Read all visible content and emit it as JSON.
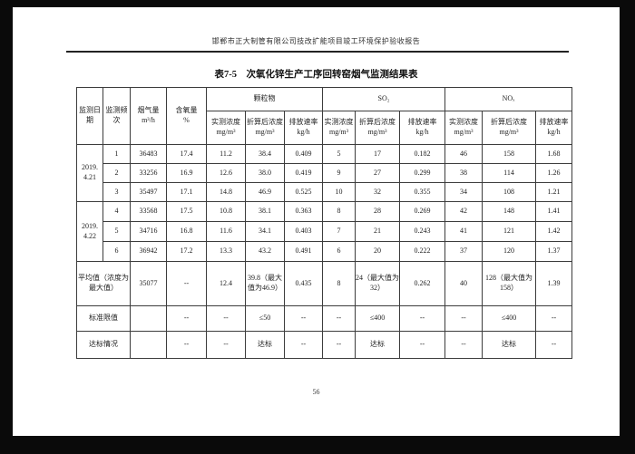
{
  "page": {
    "header": "邯郸市正大制管有限公司技改扩能项目竣工环境保护验收报告",
    "title": "表7-5　次氧化锌生产工序回转窑烟气监测结果表",
    "page_number": "56"
  },
  "table": {
    "rows": [
      [
        {
          "t": "监测日期",
          "rs": 2,
          "n": "col-header-date"
        },
        {
          "t": "监测频次",
          "rs": 2,
          "n": "col-header-frequency"
        },
        {
          "t": "烟气量\nm³/h",
          "rs": 2,
          "n": "col-header-flue-gas-volume"
        },
        {
          "t": "含氧量\n%",
          "rs": 2,
          "n": "col-header-oxygen-content"
        },
        {
          "t": "颗粒物",
          "cs": 3,
          "n": "group-header-particulate"
        },
        {
          "t": "SO₂",
          "cs": 3,
          "n": "group-header-so2"
        },
        {
          "t": "NOₓ",
          "cs": 3,
          "n": "group-header-nox"
        }
      ],
      [
        {
          "t": "实测浓度\nmg/m³",
          "n": "col-header-pm-measured"
        },
        {
          "t": "折算后浓度\nmg/m³",
          "n": "col-header-pm-converted"
        },
        {
          "t": "排放速率\nkg/h",
          "n": "col-header-pm-rate"
        },
        {
          "t": "实测浓度\nmg/m³",
          "n": "col-header-so2-measured"
        },
        {
          "t": "折算后浓度\nmg/m³",
          "n": "col-header-so2-converted"
        },
        {
          "t": "排放速率\nkg/h",
          "n": "col-header-so2-rate"
        },
        {
          "t": "实测浓度\nmg/m³",
          "n": "col-header-nox-measured"
        },
        {
          "t": "折算后浓度\nmg/m³",
          "n": "col-header-nox-converted"
        },
        {
          "t": "排放速率\nkg/h",
          "n": "col-header-nox-rate"
        }
      ],
      [
        {
          "t": "2019.\n4.21",
          "rs": 3,
          "n": "date-cell"
        },
        {
          "t": "1"
        },
        {
          "t": "36483"
        },
        {
          "t": "17.4"
        },
        {
          "t": "11.2"
        },
        {
          "t": "38.4"
        },
        {
          "t": "0.409"
        },
        {
          "t": "5"
        },
        {
          "t": "17"
        },
        {
          "t": "0.182"
        },
        {
          "t": "46"
        },
        {
          "t": "158"
        },
        {
          "t": "1.68"
        }
      ],
      [
        {
          "t": "2"
        },
        {
          "t": "33256"
        },
        {
          "t": "16.9"
        },
        {
          "t": "12.6"
        },
        {
          "t": "38.0"
        },
        {
          "t": "0.419"
        },
        {
          "t": "9"
        },
        {
          "t": "27"
        },
        {
          "t": "0.299"
        },
        {
          "t": "38"
        },
        {
          "t": "114"
        },
        {
          "t": "1.26"
        }
      ],
      [
        {
          "t": "3"
        },
        {
          "t": "35497"
        },
        {
          "t": "17.1"
        },
        {
          "t": "14.8"
        },
        {
          "t": "46.9"
        },
        {
          "t": "0.525"
        },
        {
          "t": "10"
        },
        {
          "t": "32"
        },
        {
          "t": "0.355"
        },
        {
          "t": "34"
        },
        {
          "t": "108"
        },
        {
          "t": "1.21"
        }
      ],
      [
        {
          "t": "2019.\n4.22",
          "rs": 3,
          "n": "date-cell"
        },
        {
          "t": "4"
        },
        {
          "t": "33568"
        },
        {
          "t": "17.5"
        },
        {
          "t": "10.8"
        },
        {
          "t": "38.1"
        },
        {
          "t": "0.363"
        },
        {
          "t": "8"
        },
        {
          "t": "28"
        },
        {
          "t": "0.269"
        },
        {
          "t": "42"
        },
        {
          "t": "148"
        },
        {
          "t": "1.41"
        }
      ],
      [
        {
          "t": "5"
        },
        {
          "t": "34716"
        },
        {
          "t": "16.8"
        },
        {
          "t": "11.6"
        },
        {
          "t": "34.1"
        },
        {
          "t": "0.403"
        },
        {
          "t": "7"
        },
        {
          "t": "21"
        },
        {
          "t": "0.243"
        },
        {
          "t": "41"
        },
        {
          "t": "121"
        },
        {
          "t": "1.42"
        }
      ],
      [
        {
          "t": "6"
        },
        {
          "t": "36942"
        },
        {
          "t": "17.2"
        },
        {
          "t": "13.3"
        },
        {
          "t": "43.2"
        },
        {
          "t": "0.491"
        },
        {
          "t": "6"
        },
        {
          "t": "20"
        },
        {
          "t": "0.222"
        },
        {
          "t": "37"
        },
        {
          "t": "120"
        },
        {
          "t": "1.37"
        }
      ],
      [
        {
          "t": "平均值（浓度为最大值）",
          "cs": 2,
          "n": "row-label-average"
        },
        {
          "t": "35077"
        },
        {
          "t": "--"
        },
        {
          "t": "12.4"
        },
        {
          "t": "39.8（最大值为46.9）"
        },
        {
          "t": "0.435"
        },
        {
          "t": "8"
        },
        {
          "t": "24（最大值为32）"
        },
        {
          "t": "0.262"
        },
        {
          "t": "40"
        },
        {
          "t": "128（最大值为158）"
        },
        {
          "t": "1.39"
        }
      ],
      [
        {
          "t": "标准限值",
          "cs": 2,
          "n": "row-label-limit"
        },
        {
          "t": ""
        },
        {
          "t": "--"
        },
        {
          "t": "--"
        },
        {
          "t": "≤50"
        },
        {
          "t": "--"
        },
        {
          "t": "--"
        },
        {
          "t": "≤400"
        },
        {
          "t": "--"
        },
        {
          "t": "--"
        },
        {
          "t": "≤400"
        },
        {
          "t": "--"
        }
      ],
      [
        {
          "t": "达标情况",
          "cs": 2,
          "n": "row-label-compliance"
        },
        {
          "t": ""
        },
        {
          "t": "--"
        },
        {
          "t": "--"
        },
        {
          "t": "达标"
        },
        {
          "t": "--"
        },
        {
          "t": "--"
        },
        {
          "t": "达标"
        },
        {
          "t": "--"
        },
        {
          "t": "--"
        },
        {
          "t": "达标"
        },
        {
          "t": "--"
        }
      ]
    ]
  }
}
